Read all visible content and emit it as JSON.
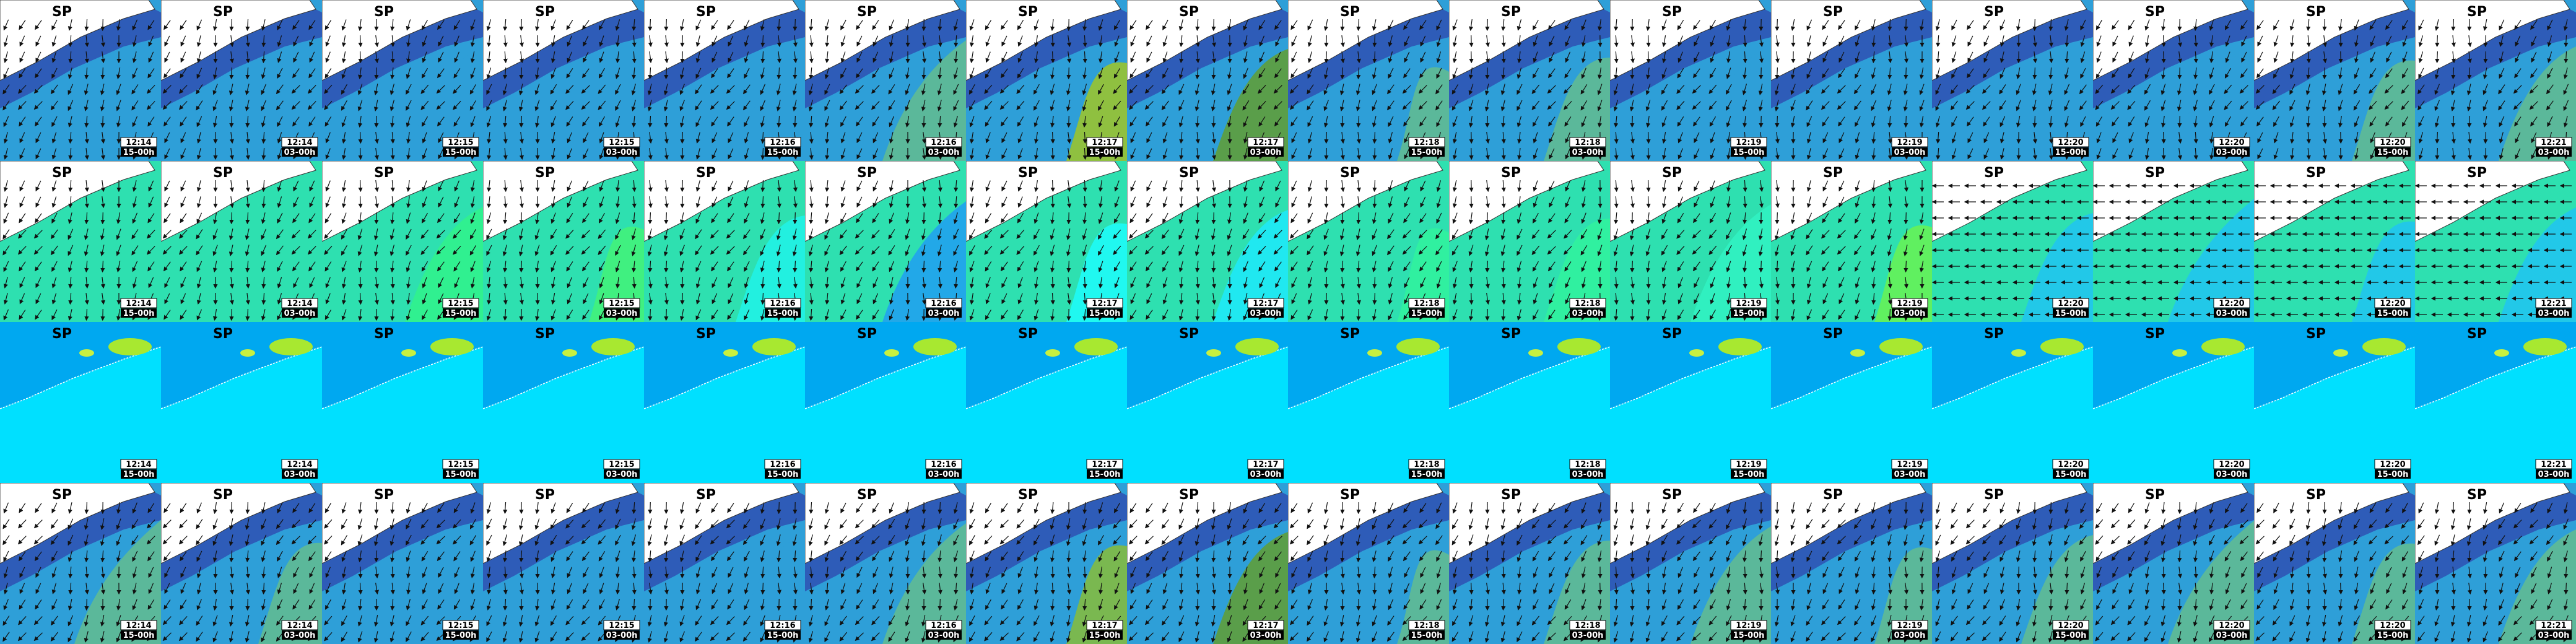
{
  "tile_label": "SP",
  "columns": [
    {
      "date": "12:14",
      "time": "15-00h"
    },
    {
      "date": "12:14",
      "time": "03-00h"
    },
    {
      "date": "12:15",
      "time": "15-00h"
    },
    {
      "date": "12:15",
      "time": "03-00h"
    },
    {
      "date": "12:16",
      "time": "15-00h"
    },
    {
      "date": "12:16",
      "time": "03-00h"
    },
    {
      "date": "12:17",
      "time": "15-00h"
    },
    {
      "date": "12:17",
      "time": "03-00h"
    },
    {
      "date": "12:18",
      "time": "15-00h"
    },
    {
      "date": "12:18",
      "time": "03-00h"
    },
    {
      "date": "12:19",
      "time": "15-00h"
    },
    {
      "date": "12:19",
      "time": "03-00h"
    },
    {
      "date": "12:20",
      "time": "15-00h"
    },
    {
      "date": "12:20",
      "time": "03-00h"
    },
    {
      "date": "12:20",
      "time": "15-00h"
    },
    {
      "date": "12:21",
      "time": "03-00h"
    }
  ],
  "rows": [
    {
      "base": "#2e9fd8",
      "band": "#2e5cb8",
      "arrows": true,
      "land": "coast",
      "fills": [
        "#2e9fd8",
        "#2e9fd8",
        "#2e9fd8",
        "#2e9fd8",
        "#2e9fd8",
        "#5bb89a",
        "#8fc040",
        "#5a9e4a",
        "#5bb89a",
        "#5bb89a",
        "#2e9fd8",
        "#2e9fd8",
        "#2e9fd8",
        "#2e9fd8",
        "#5bb89a",
        "#5bb89a"
      ]
    },
    {
      "base": "#2ee0b0",
      "band": "#2ee0b0",
      "arrows": true,
      "land": "coast",
      "fills": [
        "#2ee0b0",
        "#2ee0b0",
        "#30f090",
        "#40f080",
        "#22f0e0",
        "#22a8e8",
        "#20f8f0",
        "#20e8f0",
        "#30f0a0",
        "#30f0a0",
        "#30f0c0",
        "#60f060",
        "#22c8e8",
        "#22c8e8",
        "#22c8e8",
        "#22c8e8"
      ]
    },
    {
      "base": "#00e0ff",
      "band": "#00a8f0",
      "arrows": false,
      "land": "shore",
      "fills": [
        "#00e0ff",
        "#00e0ff",
        "#00e0ff",
        "#00e0ff",
        "#00e0ff",
        "#00e0ff",
        "#00e0ff",
        "#00e0ff",
        "#00e0ff",
        "#00e0ff",
        "#00e0ff",
        "#00e0ff",
        "#00e0ff",
        "#00e0ff",
        "#00e0ff",
        "#00e0ff"
      ]
    },
    {
      "base": "#2e9fd8",
      "band": "#2e5cb8",
      "arrows": true,
      "land": "coast",
      "fills": [
        "#5bb89a",
        "#5bb89a",
        "#2e9fd8",
        "#2e9fd8",
        "#2e9fd8",
        "#5bb89a",
        "#7ab850",
        "#5a9e4a",
        "#5bb89a",
        "#5bb89a",
        "#5bb89a",
        "#5bb89a",
        "#5bb89a",
        "#5bb89a",
        "#5bb89a",
        "#5bb89a"
      ]
    }
  ]
}
